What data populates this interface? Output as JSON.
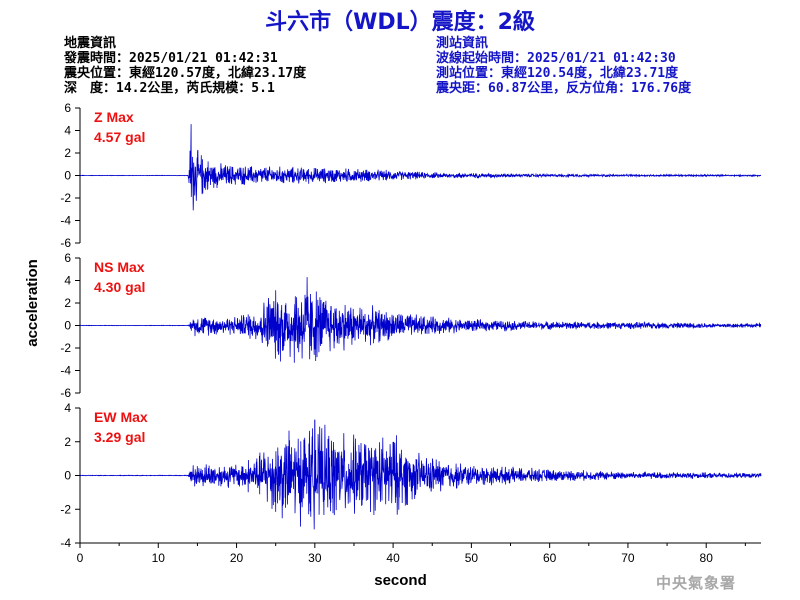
{
  "title": "斗六市（WDL）震度：2級",
  "event_info": {
    "heading": "地震資訊",
    "origin_time": "發震時間：2025/01/21 01:42:31",
    "epicenter": "震央位置：東經120.57度，北緯23.17度",
    "depth_magnitude": "深　度：14.2公里，芮氏規模：5.1"
  },
  "station_info": {
    "heading": "測站資訊",
    "wave_start": "波線起始時間：2025/01/21 01:42:30",
    "station_location": "測站位置：東經120.54度，北緯23.71度",
    "distance_azimuth": "震央距：60.87公里，反方位角：176.76度"
  },
  "credit": "中央氣象署",
  "chart_data": {
    "type": "line",
    "xlabel": "second",
    "ylabel": "acceleration",
    "xlim": [
      0,
      87
    ],
    "xticks": [
      0,
      10,
      20,
      30,
      40,
      50,
      60,
      70,
      80
    ],
    "color": "#0000cc",
    "label_color": "#ee1111",
    "grid": false,
    "panels": [
      {
        "name": "Z Max",
        "max_label": "4.57 gal",
        "ylim": [
          -6,
          6
        ],
        "yticks": [
          6,
          4,
          2,
          0,
          -2,
          -4,
          -6
        ],
        "envelope": [
          [
            0,
            0.02
          ],
          [
            13.8,
            0.02
          ],
          [
            14.2,
            4.57
          ],
          [
            15,
            2.5
          ],
          [
            17,
            1.3
          ],
          [
            20,
            1.0
          ],
          [
            25,
            0.9
          ],
          [
            30,
            0.8
          ],
          [
            35,
            0.7
          ],
          [
            40,
            0.5
          ],
          [
            45,
            0.3
          ],
          [
            50,
            0.25
          ],
          [
            60,
            0.15
          ],
          [
            70,
            0.1
          ],
          [
            87,
            0.07
          ]
        ]
      },
      {
        "name": "NS Max",
        "max_label": "4.30 gal",
        "ylim": [
          -6,
          6
        ],
        "yticks": [
          6,
          4,
          2,
          0,
          -2,
          -4,
          -6
        ],
        "envelope": [
          [
            0,
            0.02
          ],
          [
            13.8,
            0.02
          ],
          [
            14.5,
            1.0
          ],
          [
            20,
            0.9
          ],
          [
            23,
            1.8
          ],
          [
            24,
            3.3
          ],
          [
            29,
            4.3
          ],
          [
            32,
            2.8
          ],
          [
            35,
            2.2
          ],
          [
            40,
            1.4
          ],
          [
            45,
            0.9
          ],
          [
            50,
            0.6
          ],
          [
            60,
            0.4
          ],
          [
            70,
            0.35
          ],
          [
            87,
            0.2
          ]
        ]
      },
      {
        "name": "EW Max",
        "max_label": "3.29 gal",
        "ylim": [
          -4,
          4
        ],
        "yticks": [
          4,
          2,
          0,
          -2,
          -4
        ],
        "envelope": [
          [
            0,
            0.02
          ],
          [
            13.8,
            0.02
          ],
          [
            14.5,
            0.8
          ],
          [
            20,
            0.8
          ],
          [
            23,
            1.5
          ],
          [
            25,
            2.8
          ],
          [
            28,
            3.1
          ],
          [
            30,
            3.29
          ],
          [
            35,
            2.6
          ],
          [
            38,
            2.5
          ],
          [
            40,
            2.8
          ],
          [
            43,
            1.5
          ],
          [
            47,
            1.0
          ],
          [
            50,
            0.7
          ],
          [
            60,
            0.4
          ],
          [
            70,
            0.25
          ],
          [
            87,
            0.15
          ]
        ]
      }
    ]
  }
}
